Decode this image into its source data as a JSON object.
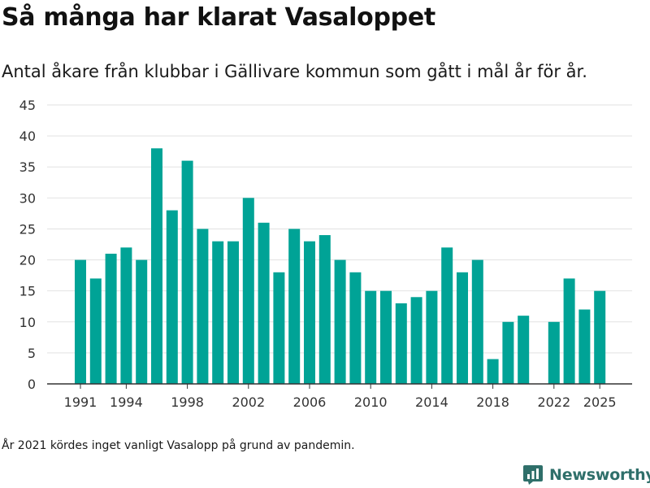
{
  "header": {
    "title": "Så många har klarat Vasaloppet",
    "subtitle": "Antal åkare från klubbar i Gällivare kommun som gått i mål år för år."
  },
  "footnote": "År 2021 kördes inget vanligt Vasalopp på grund av pandemin.",
  "brand": {
    "name": "Newsworthy",
    "logo_icon": "newsworthy-logo-icon",
    "color": "#2f6f6a"
  },
  "chart_data": {
    "type": "bar",
    "title": "Så många har klarat Vasaloppet",
    "subtitle": "Antal åkare från klubbar i Gällivare kommun som gått i mål år för år.",
    "xlabel": "",
    "ylabel": "",
    "categories": [
      1991,
      1992,
      1993,
      1994,
      1995,
      1996,
      1997,
      1998,
      1999,
      2000,
      2001,
      2002,
      2003,
      2004,
      2005,
      2006,
      2007,
      2008,
      2009,
      2010,
      2011,
      2012,
      2013,
      2014,
      2015,
      2016,
      2017,
      2018,
      2019,
      2020,
      2021,
      2022,
      2023,
      2024,
      2025
    ],
    "values": [
      20,
      17,
      21,
      22,
      20,
      38,
      28,
      36,
      25,
      23,
      23,
      30,
      26,
      18,
      25,
      23,
      24,
      20,
      18,
      15,
      15,
      13,
      14,
      15,
      22,
      18,
      20,
      4,
      10,
      11,
      null,
      10,
      17,
      12,
      15
    ],
    "x_tick_labels": [
      "1991",
      "1994",
      "1998",
      "2002",
      "2006",
      "2010",
      "2014",
      "2018",
      "2022",
      "2025"
    ],
    "y_tick_labels": [
      "0",
      "5",
      "10",
      "15",
      "20",
      "25",
      "30",
      "35",
      "40",
      "45"
    ],
    "ylim": [
      0,
      45
    ],
    "grid": true,
    "bar_color": "#00a396",
    "grid_color": "#e2e2e2",
    "axis_color": "#333333"
  }
}
